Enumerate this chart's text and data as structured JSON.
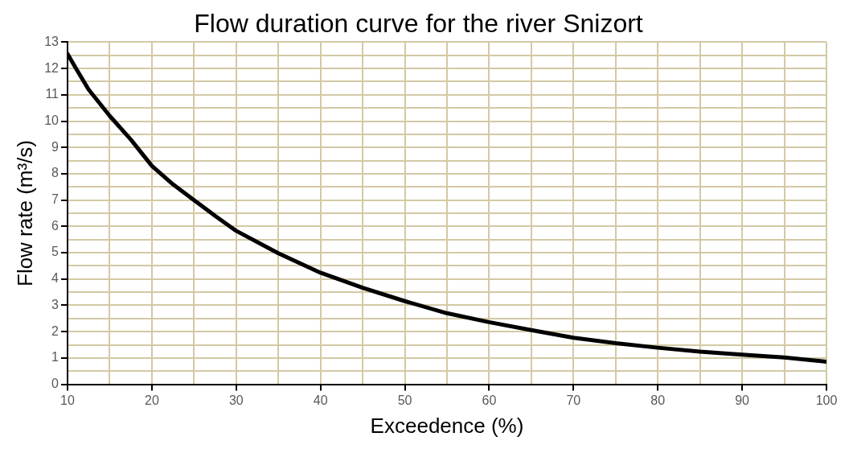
{
  "chart_data": {
    "type": "line",
    "title": "Flow duration curve for the river Snizort",
    "xlabel": "Exceedence (%)",
    "ylabel": "Flow rate (m³/s)",
    "x": [
      10,
      11,
      12.5,
      15,
      17.5,
      20,
      22.5,
      25,
      27.5,
      30,
      35,
      40,
      45,
      50,
      55,
      60,
      65,
      70,
      75,
      80,
      85,
      90,
      95,
      100
    ],
    "series": [
      {
        "color": "#000000",
        "values": [
          12.55,
          12,
          11.2,
          10.2,
          9.3,
          8.3,
          7.6,
          7.0,
          6.4,
          5.83,
          4.98,
          4.24,
          3.67,
          3.16,
          2.7,
          2.36,
          2.06,
          1.77,
          1.56,
          1.39,
          1.24,
          1.13,
          1.02,
          0.86
        ]
      }
    ],
    "xlim": [
      10,
      100
    ],
    "xticks": [
      10,
      {
        "value": 15,
        "label": null
      },
      20,
      {
        "value": 25,
        "label": null
      },
      30,
      {
        "value": 35,
        "label": null
      },
      40,
      {
        "value": 45,
        "label": null
      },
      50,
      {
        "value": 55,
        "label": null
      },
      60,
      {
        "value": 65,
        "label": null
      },
      70,
      {
        "value": 75,
        "label": null
      },
      80,
      {
        "value": 85,
        "label": null
      },
      90,
      {
        "value": 95,
        "label": null
      },
      100
    ],
    "ylim": [
      0,
      13
    ],
    "yticks": [
      0,
      {
        "value": 0.5,
        "label": null
      },
      1,
      {
        "value": 1.5,
        "label": null
      },
      2,
      {
        "value": 2.5,
        "label": null
      },
      3,
      {
        "value": 3.5,
        "label": null
      },
      4,
      {
        "value": 4.5,
        "label": null
      },
      5,
      {
        "value": 5.5,
        "label": null
      },
      6,
      {
        "value": 6.5,
        "label": null
      },
      7,
      {
        "value": 7.5,
        "label": null
      },
      8,
      {
        "value": 8.5,
        "label": null
      },
      9,
      {
        "value": 9.5,
        "label": null
      },
      10,
      {
        "value": 10.5,
        "label": null
      },
      11,
      {
        "value": 11.5,
        "label": null
      },
      12,
      {
        "value": 12.5,
        "label": null
      },
      13
    ],
    "grid": true,
    "legend": false,
    "marker": "none",
    "line_style": "solid"
  }
}
